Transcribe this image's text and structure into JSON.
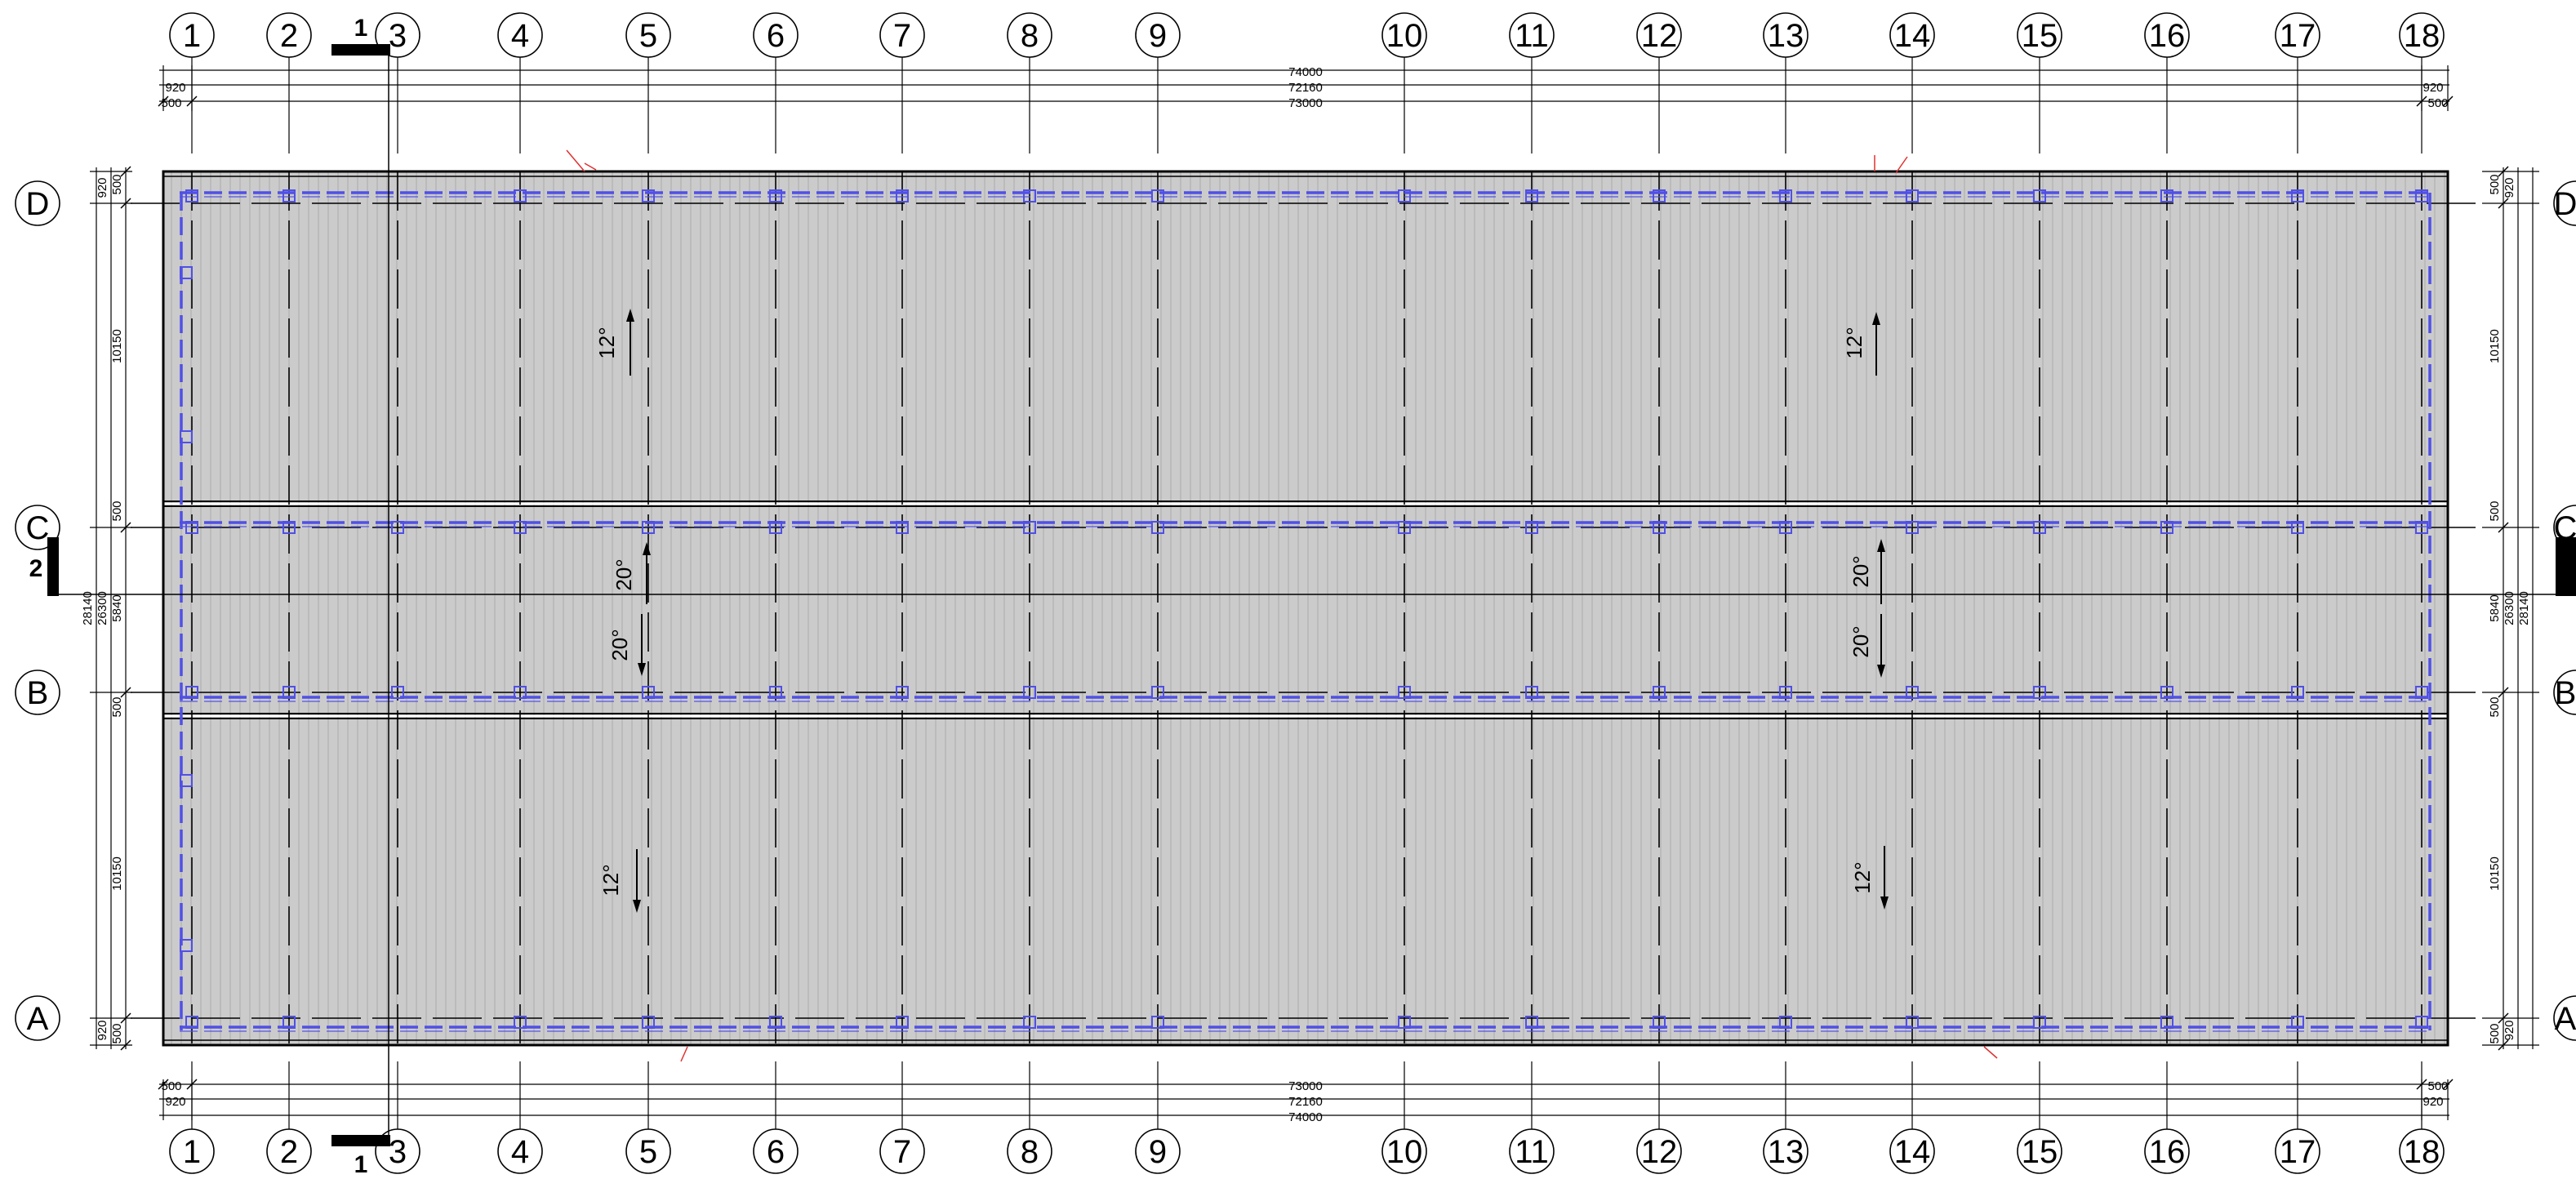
{
  "plan": {
    "axes": {
      "columns": [
        "1",
        "2",
        "3",
        "4",
        "5",
        "6",
        "7",
        "8",
        "9",
        "10",
        "11",
        "12",
        "13",
        "14",
        "15",
        "16",
        "17",
        "18"
      ],
      "rows": [
        "D",
        "C",
        "B",
        "A"
      ]
    },
    "dimensions": {
      "top": {
        "overall": "74000",
        "mid": "72160",
        "axis": "73000",
        "offset_outer": "920",
        "offset_inner": "500"
      },
      "bottom": {
        "axis": "73000",
        "mid": "72160",
        "overall": "74000",
        "offset_inner": "500",
        "offset_outer": "920"
      },
      "side": {
        "overall": "28140",
        "mid": "26300",
        "centre": "5840",
        "bay": "10150",
        "offset_outer": "920",
        "offset_inner": "500"
      }
    },
    "slopes": {
      "outer": "12°",
      "centre": "20°"
    },
    "section_marks": {
      "vertical": "1",
      "horizontal": "2"
    },
    "colors": {
      "roof_fill": "#cbcbcb",
      "rib_line": "#b4b4b4",
      "gutter_line": "#5050e6",
      "trim_line": "#e03030",
      "line": "#000000"
    }
  }
}
